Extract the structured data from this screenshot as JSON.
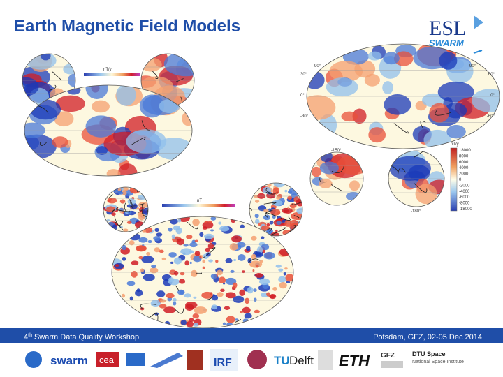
{
  "header": {
    "title": "Earth Magnetic Field Models",
    "logo": {
      "main": "ESL",
      "sub": "SWARM"
    }
  },
  "figures": {
    "top_left": {
      "colorbar_unit": "nT/y"
    },
    "bottom": {
      "colorbar_unit": "nT"
    },
    "right": {
      "colorbar_unit": "nT/y",
      "colorbar_ticks": [
        "18000",
        "8000",
        "6000",
        "4000",
        "2000",
        "0",
        "-2000",
        "-4000",
        "-6000",
        "-8000",
        "-18000"
      ],
      "map_labels_left": [
        "30°",
        "0°",
        "-30°"
      ],
      "map_labels_right": [
        "60°",
        "0°",
        "-60°"
      ],
      "map_labels_top": [
        "90°",
        "-90°"
      ],
      "polar_labels": [
        "-150°",
        "-180°"
      ]
    }
  },
  "footer": {
    "left": {
      "ordinal": "4",
      "suffix": "th",
      "text": "Swarm Data Quality Workshop"
    },
    "right": "Potsdam, GFZ, 02-05 Dec 2014"
  },
  "partners": [
    "swarm",
    "cea",
    "IRF",
    "TU",
    "Delft",
    "ETH",
    "GFZ",
    "DTU Space",
    "National Space Institute"
  ]
}
